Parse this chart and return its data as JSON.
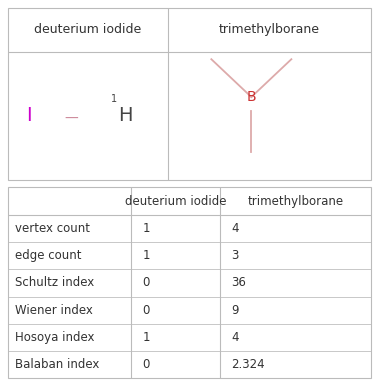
{
  "top_table": {
    "col_headers": [
      "deuterium iodide",
      "trimethylborane"
    ]
  },
  "bottom_table": {
    "col_headers": [
      "",
      "deuterium iodide",
      "trimethylborane"
    ],
    "rows": [
      [
        "vertex count",
        "1",
        "4"
      ],
      [
        "edge count",
        "1",
        "3"
      ],
      [
        "Schultz index",
        "0",
        "36"
      ],
      [
        "Wiener index",
        "0",
        "9"
      ],
      [
        "Hosoya index",
        "1",
        "4"
      ],
      [
        "Balaban index",
        "0",
        "2.324"
      ]
    ]
  },
  "colors": {
    "border": "#bbbbbb",
    "header_text": "#333333",
    "cell_text": "#333333",
    "background": "#ffffff",
    "iodine_color": "#cc00cc",
    "hydrogen_color": "#444444",
    "bond_color": "#cc8899",
    "boron_color": "#cc3333",
    "boron_bond_color": "#ddaaaa"
  },
  "font_family": "DejaVu Sans"
}
